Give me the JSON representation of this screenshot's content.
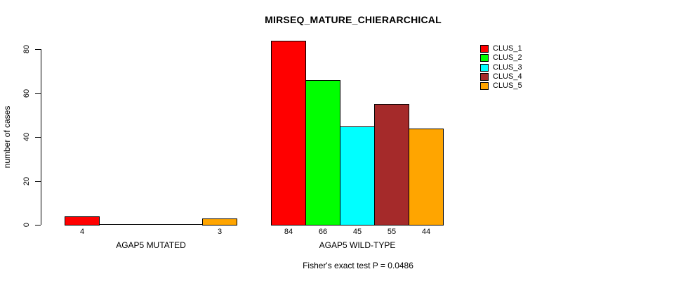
{
  "chart_data": {
    "type": "bar",
    "title": "MIRSEQ_MATURE_CHIERARCHICAL",
    "ylabel": "number of cases",
    "xlabel": "",
    "ylim": [
      0,
      80
    ],
    "yticks": [
      0,
      20,
      40,
      60,
      80
    ],
    "grid": false,
    "legend_position": "topright",
    "show_bar_value_labels": true,
    "hide_zero_value_labels": true,
    "categories": [
      "AGAP5 MUTATED",
      "AGAP5 WILD-TYPE"
    ],
    "series": [
      {
        "name": "CLUS_1",
        "color": "#ff0000",
        "values": [
          4,
          84
        ]
      },
      {
        "name": "CLUS_2",
        "color": "#00ff00",
        "values": [
          0,
          66
        ]
      },
      {
        "name": "CLUS_3",
        "color": "#00ffff",
        "values": [
          0,
          45
        ]
      },
      {
        "name": "CLUS_4",
        "color": "#a52a2a",
        "values": [
          0,
          55
        ]
      },
      {
        "name": "CLUS_5",
        "color": "#ffa500",
        "values": [
          3,
          44
        ]
      }
    ],
    "annotation": "Fisher's exact test P = 0.0486"
  }
}
